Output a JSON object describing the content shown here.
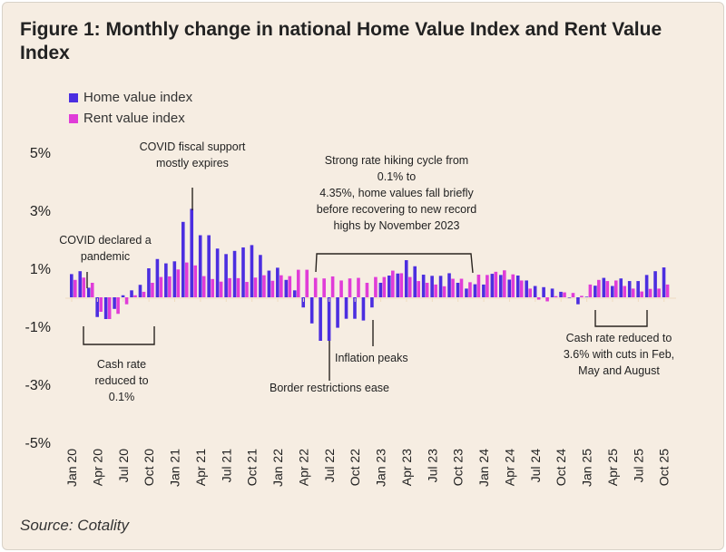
{
  "title": "Figure 1: Monthly change in national Home Value Index and Rent Value Index",
  "source": "Source: Cotality",
  "chart_data": {
    "type": "bar",
    "title": "Figure 1: Monthly change in national Home Value Index and Rent Value Index",
    "ylim": [
      -5,
      5
    ],
    "yticks": [
      "5%",
      "3%",
      "1%",
      "-1%",
      "-3%",
      "-5%"
    ],
    "ytick_values": [
      5,
      3,
      1,
      -1,
      -3,
      -5
    ],
    "grid": false,
    "legend_position": "top-left",
    "x_start": "Jan 2020",
    "x_end": "Oct 2025",
    "xtick_labels": [
      "Jan 20",
      "Apr 20",
      "Jul 20",
      "Oct 20",
      "Jan 21",
      "Apr 21",
      "Jul 21",
      "Oct 21",
      "Jan 22",
      "Apr 22",
      "Jul 22",
      "Oct 22",
      "Jan 23",
      "Apr 23",
      "Jul 23",
      "Oct 23",
      "Jan 24",
      "Apr 24",
      "Jul 24",
      "Oct 24",
      "Jan 25",
      "Apr 25",
      "Jul 25",
      "Oct 25"
    ],
    "series": [
      {
        "name": "Home value index",
        "color": "#4b2ee0",
        "values": [
          0.8,
          0.9,
          0.33,
          -0.68,
          -0.75,
          -0.4,
          0.07,
          0.24,
          0.43,
          1.0,
          1.32,
          1.17,
          1.24,
          2.6,
          3.05,
          2.14,
          2.14,
          1.68,
          1.49,
          1.6,
          1.72,
          1.8,
          1.46,
          0.92,
          1.02,
          0.6,
          0.24,
          -0.35,
          -0.9,
          -1.5,
          -1.5,
          -1.05,
          -0.74,
          -0.74,
          -0.8,
          -0.35,
          0.5,
          0.75,
          0.82,
          1.28,
          1.07,
          0.78,
          0.74,
          0.74,
          0.83,
          0.5,
          0.3,
          0.45,
          0.44,
          0.81,
          0.77,
          0.61,
          0.75,
          0.58,
          0.39,
          0.35,
          0.3,
          0.19,
          0.0,
          -0.24,
          0.02,
          0.4,
          0.67,
          0.39,
          0.65,
          0.56,
          0.56,
          0.77,
          0.9,
          1.03
        ]
      },
      {
        "name": "Rent value index",
        "color": "#e03cd8",
        "values": [
          0.6,
          0.68,
          0.5,
          -0.5,
          -0.75,
          -0.57,
          -0.24,
          0.07,
          0.19,
          0.5,
          0.7,
          0.72,
          0.96,
          1.2,
          1.1,
          0.73,
          0.63,
          0.54,
          0.66,
          0.66,
          0.53,
          0.68,
          0.76,
          0.57,
          0.76,
          0.73,
          0.95,
          0.95,
          0.67,
          0.65,
          0.72,
          0.58,
          0.65,
          0.67,
          0.5,
          0.7,
          0.7,
          0.92,
          0.83,
          0.7,
          0.56,
          0.5,
          0.44,
          0.38,
          0.64,
          0.64,
          0.52,
          0.78,
          0.77,
          0.88,
          0.93,
          0.79,
          0.58,
          0.3,
          -0.08,
          -0.14,
          0.04,
          0.17,
          0.15,
          0.05,
          0.44,
          0.6,
          0.56,
          0.58,
          0.39,
          0.3,
          0.2,
          0.29,
          0.3,
          0.44
        ]
      }
    ],
    "annotations": {
      "covid_pandemic": [
        "COVID declared a",
        "pandemic"
      ],
      "cash_rate_01": [
        "Cash rate",
        "reduced to",
        "0.1%"
      ],
      "fiscal_support": [
        "COVID fiscal support",
        "mostly expires"
      ],
      "rate_hiking": [
        "Strong rate hiking cycle from",
        "0.1% to",
        "4.35%, home values fall briefly",
        "before recovering to new record",
        "highs by November 2023"
      ],
      "border": [
        "Border restrictions ease"
      ],
      "inflation": [
        "Inflation peaks"
      ],
      "cash_rate_36": [
        "Cash rate reduced to",
        "3.6% with cuts in Feb,",
        "May and August"
      ]
    }
  }
}
